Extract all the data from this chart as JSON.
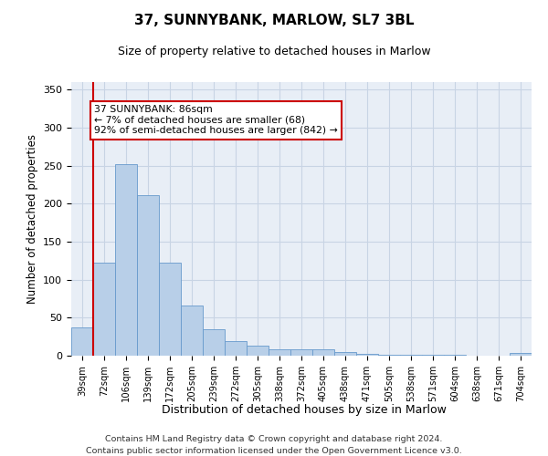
{
  "title1": "37, SUNNYBANK, MARLOW, SL7 3BL",
  "title2": "Size of property relative to detached houses in Marlow",
  "xlabel": "Distribution of detached houses by size in Marlow",
  "ylabel": "Number of detached properties",
  "categories": [
    "39sqm",
    "72sqm",
    "106sqm",
    "139sqm",
    "172sqm",
    "205sqm",
    "239sqm",
    "272sqm",
    "305sqm",
    "338sqm",
    "372sqm",
    "405sqm",
    "438sqm",
    "471sqm",
    "505sqm",
    "538sqm",
    "571sqm",
    "604sqm",
    "638sqm",
    "671sqm",
    "704sqm"
  ],
  "values": [
    37,
    123,
    252,
    211,
    123,
    66,
    35,
    19,
    13,
    9,
    9,
    8,
    5,
    2,
    1,
    1,
    1,
    1,
    0,
    0,
    4
  ],
  "bar_color": "#b8cfe8",
  "bar_edge_color": "#6699cc",
  "grid_color": "#c8d4e4",
  "background_color": "#e8eef6",
  "annotation_box_text": "37 SUNNYBANK: 86sqm\n← 7% of detached houses are smaller (68)\n92% of semi-detached houses are larger (842) →",
  "vline_color": "#cc0000",
  "annotation_box_color": "#ffffff",
  "annotation_box_edge_color": "#cc0000",
  "ylim": [
    0,
    360
  ],
  "yticks": [
    0,
    50,
    100,
    150,
    200,
    250,
    300,
    350
  ],
  "footer_line1": "Contains HM Land Registry data © Crown copyright and database right 2024.",
  "footer_line2": "Contains public sector information licensed under the Open Government Licence v3.0."
}
